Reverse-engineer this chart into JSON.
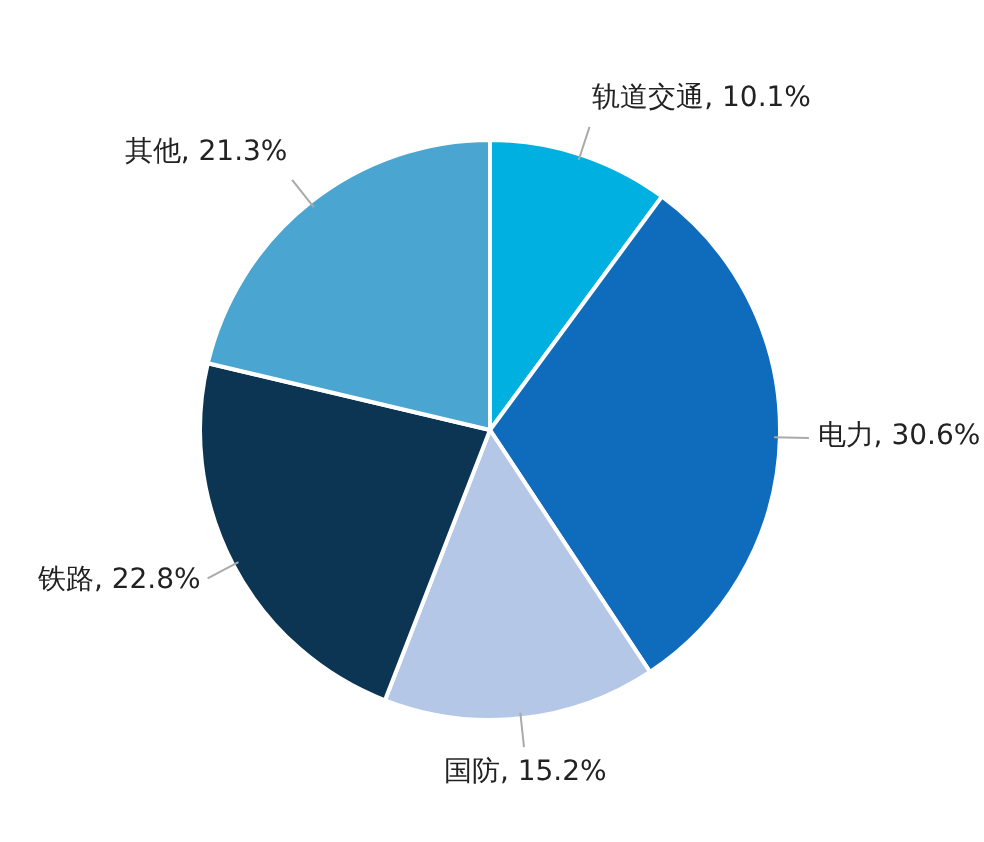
{
  "chart_data": {
    "type": "pie",
    "categories": [
      "轨道交通",
      "电力",
      "国防",
      "铁路",
      "其他"
    ],
    "values": [
      10.1,
      30.6,
      15.2,
      22.8,
      21.3
    ],
    "value_labels": [
      "10.1%",
      "30.6%",
      "15.2%",
      "22.8%",
      "21.3%"
    ],
    "colors": [
      "#00b0e0",
      "#0f6cbd",
      "#b4c7e7",
      "#0c3554",
      "#4aa6d0"
    ]
  }
}
